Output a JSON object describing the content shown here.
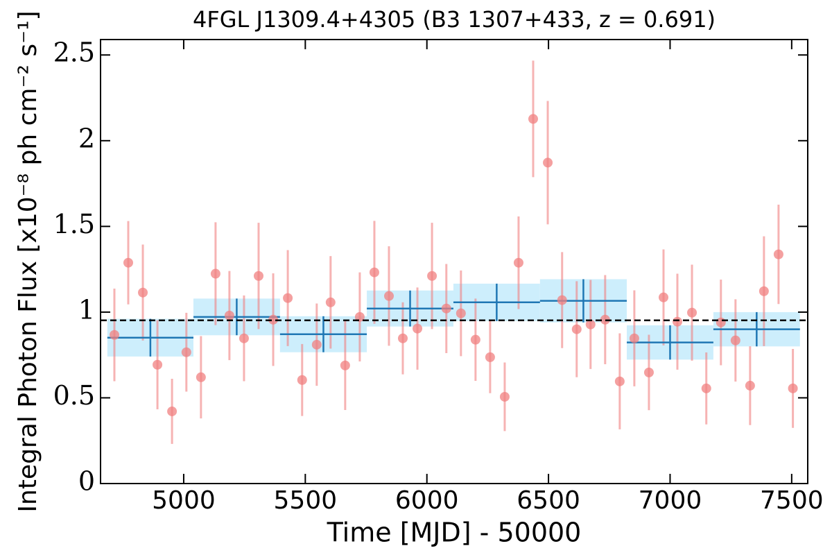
{
  "chart_data": {
    "type": "lightcurve",
    "title": "4FGL J1309.4+4305 (B3 1307+433, z = 0.691)",
    "x_label": "Time [MJD] - 50000",
    "y_label": "Integral Photon Flux [x10⁻⁸ ph cm⁻² s⁻¹]",
    "xlim": [
      4658,
      7566
    ],
    "ylim": [
      0,
      2.59
    ],
    "xticks": [
      5000,
      5500,
      6000,
      6500,
      7000,
      7500
    ],
    "yticks": [
      0,
      0.5,
      1,
      1.5,
      2,
      2.5
    ],
    "points": {
      "color": "#f08080",
      "x": [
        4715,
        4772,
        4832,
        4892,
        4952,
        5011,
        5071,
        5131,
        5188,
        5248,
        5308,
        5368,
        5428,
        5487,
        5547,
        5604,
        5664,
        5724,
        5784,
        5844,
        5901,
        5961,
        6021,
        6080,
        6140,
        6200,
        6260,
        6320,
        6377,
        6437,
        6497,
        6556,
        6616,
        6673,
        6733,
        6793,
        6853,
        6913,
        6973,
        7030,
        7090,
        7149,
        7209,
        7269,
        7329,
        7386,
        7446,
        7505
      ],
      "values": [
        0.867,
        1.288,
        1.114,
        0.693,
        0.421,
        0.766,
        0.62,
        1.224,
        0.98,
        0.847,
        1.211,
        0.956,
        1.082,
        0.604,
        0.81,
        1.057,
        0.689,
        0.972,
        1.232,
        1.094,
        0.847,
        0.904,
        1.211,
        1.021,
        0.993,
        0.839,
        0.737,
        0.506,
        1.288,
        2.127,
        1.872,
        1.07,
        0.9,
        0.928,
        0.956,
        0.596,
        0.847,
        0.648,
        1.086,
        0.944,
        0.997,
        0.555,
        0.94,
        0.835,
        0.571,
        1.122,
        1.337,
        0.555
      ],
      "errors": [
        0.27,
        0.243,
        0.28,
        0.26,
        0.19,
        0.23,
        0.24,
        0.3,
        0.26,
        0.25,
        0.31,
        0.27,
        0.28,
        0.21,
        0.24,
        0.27,
        0.26,
        0.26,
        0.3,
        0.29,
        0.21,
        0.24,
        0.31,
        0.26,
        0.25,
        0.24,
        0.21,
        0.2,
        0.27,
        0.34,
        0.36,
        0.28,
        0.28,
        0.26,
        0.26,
        0.28,
        0.28,
        0.22,
        0.28,
        0.28,
        0.28,
        0.21,
        0.25,
        0.24,
        0.23,
        0.32,
        0.29,
        0.23
      ]
    },
    "bins": {
      "color": "#1f77b4",
      "fill": "#cdeefc",
      "edges": [
        4686,
        5040,
        5396,
        5753,
        6109,
        6465,
        6822,
        7178,
        7534
      ],
      "values": [
        0.851,
        0.972,
        0.871,
        1.021,
        1.057,
        1.066,
        0.823,
        0.9
      ],
      "errors": [
        0.11,
        0.107,
        0.105,
        0.105,
        0.109,
        0.126,
        0.1,
        0.1
      ]
    },
    "mean": 0.952
  }
}
